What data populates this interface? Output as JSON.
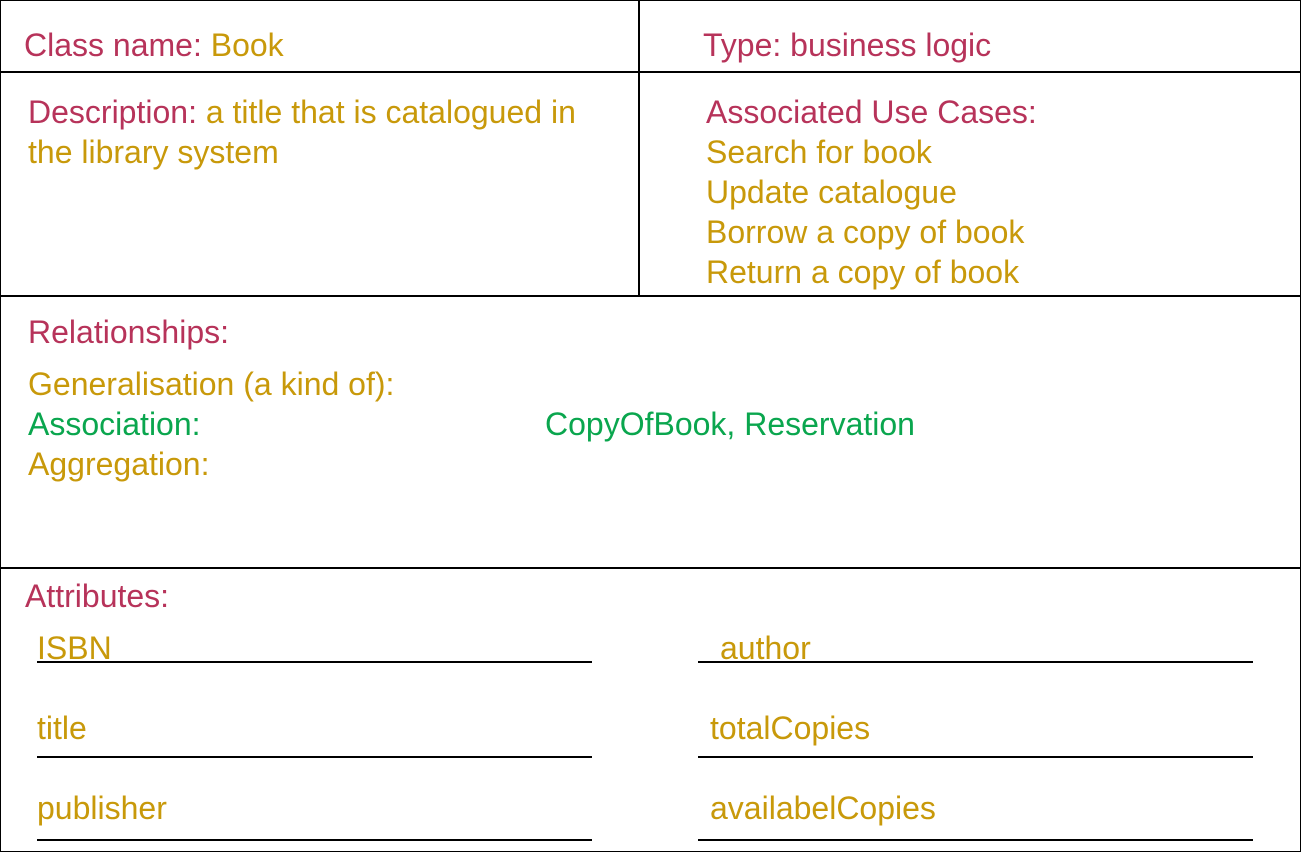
{
  "header": {
    "class_name_label": "Class name:",
    "class_name_value": "Book",
    "type_label": "Type:",
    "type_value": "business logic"
  },
  "description": {
    "label": "Description:",
    "line1": "a title that is catalogued in",
    "line2": "the library system"
  },
  "use_cases": {
    "label": "Associated Use Cases:",
    "items": [
      "Search for book",
      "Update catalogue",
      "Borrow a copy of book",
      "Return a copy of book"
    ]
  },
  "relationships": {
    "label": "Relationships:",
    "generalisation_label": "Generalisation (a kind of):",
    "association_label": "Association:",
    "association_value": "CopyOfBook, Reservation",
    "aggregation_label": "Aggregation:"
  },
  "attributes": {
    "label": "Attributes:",
    "left": [
      "ISBN",
      "title",
      "publisher"
    ],
    "right": [
      "author",
      "totalCopies",
      "availabelCopies"
    ]
  },
  "colors": {
    "label": "#b7335a",
    "value": "#c8990a",
    "association": "#0aa64e",
    "border": "#000000"
  }
}
